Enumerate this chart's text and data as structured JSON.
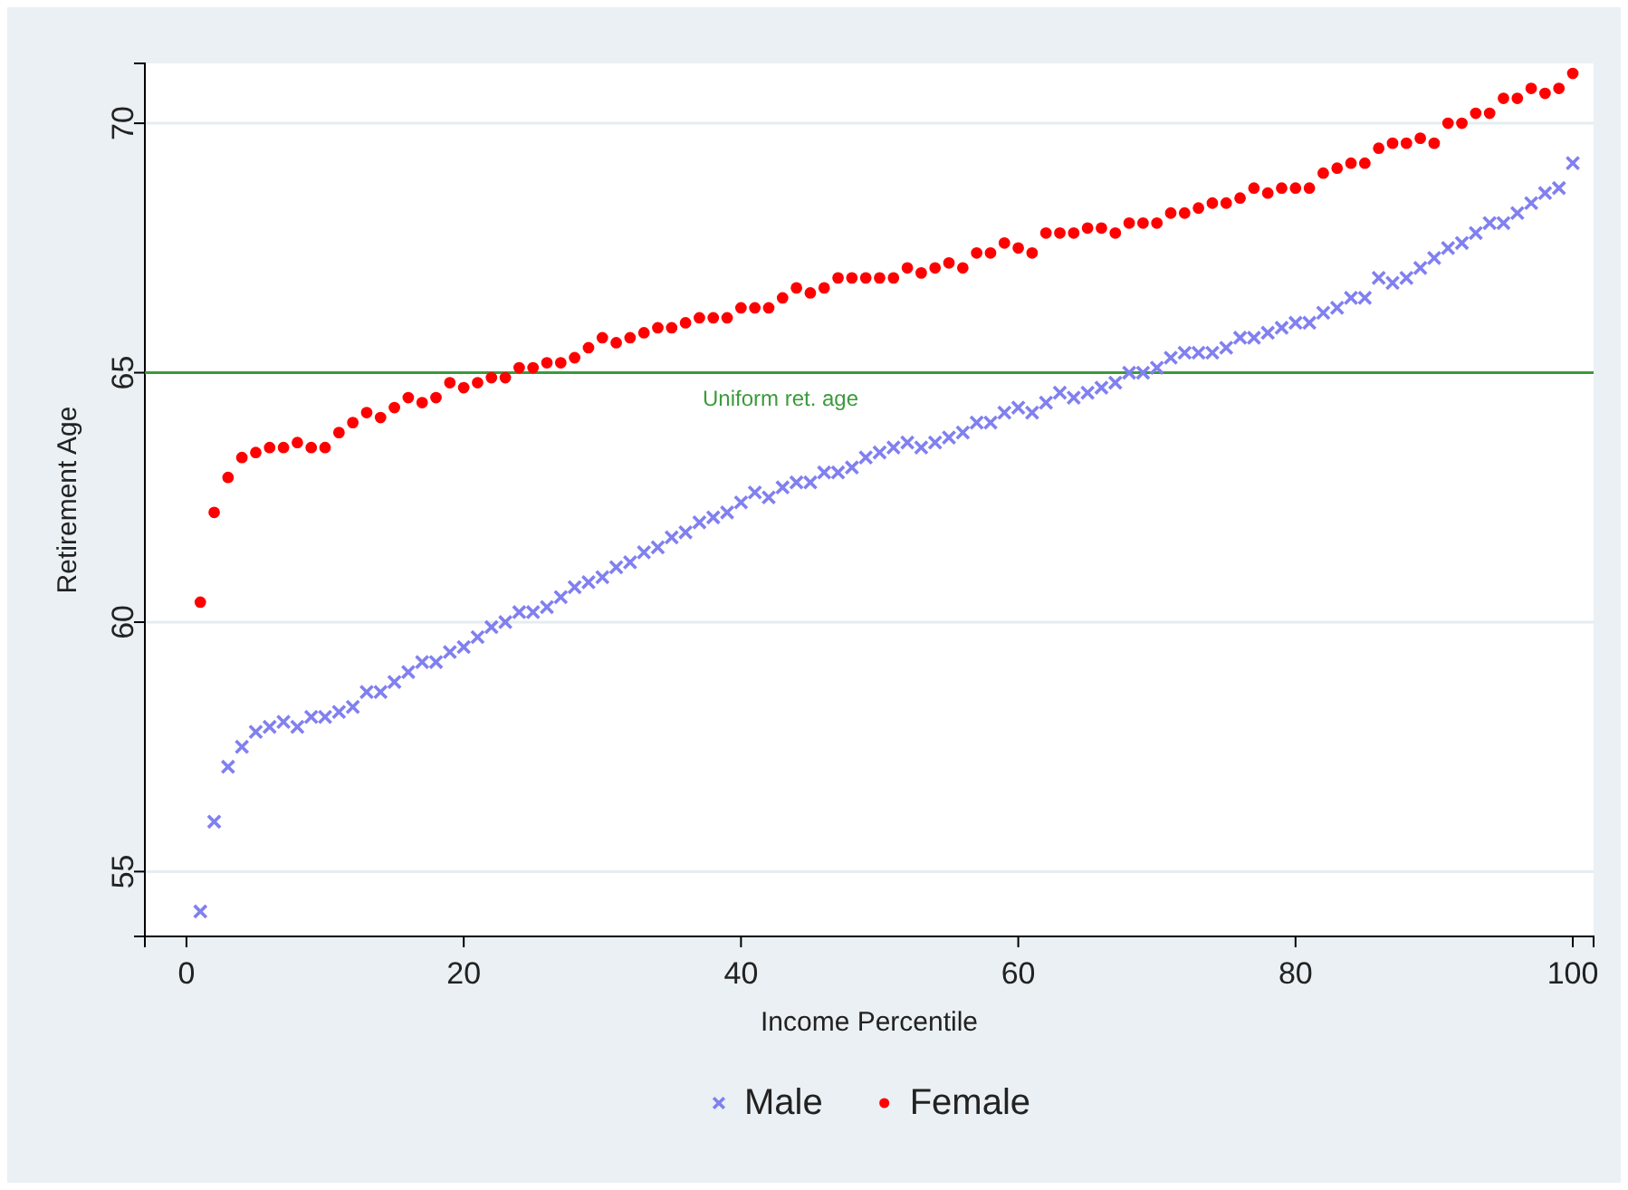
{
  "chart_data": {
    "type": "scatter",
    "xlabel": "Income Percentile",
    "ylabel": "Retirement Age",
    "x": [
      1,
      2,
      3,
      4,
      5,
      6,
      7,
      8,
      9,
      10,
      11,
      12,
      13,
      14,
      15,
      16,
      17,
      18,
      19,
      20,
      21,
      22,
      23,
      24,
      25,
      26,
      27,
      28,
      29,
      30,
      31,
      32,
      33,
      34,
      35,
      36,
      37,
      38,
      39,
      40,
      41,
      42,
      43,
      44,
      45,
      46,
      47,
      48,
      49,
      50,
      51,
      52,
      53,
      54,
      55,
      56,
      57,
      58,
      59,
      60,
      61,
      62,
      63,
      64,
      65,
      66,
      67,
      68,
      69,
      70,
      71,
      72,
      73,
      74,
      75,
      76,
      77,
      78,
      79,
      80,
      81,
      82,
      83,
      84,
      85,
      86,
      87,
      88,
      89,
      90,
      91,
      92,
      93,
      94,
      95,
      96,
      97,
      98,
      99,
      100
    ],
    "xlim": [
      -3,
      101.5
    ],
    "xticks": [
      0,
      20,
      40,
      60,
      80,
      100
    ],
    "ylim": [
      53.7,
      71.2
    ],
    "yticks": [
      55,
      60,
      65,
      70
    ],
    "grid": "y",
    "legend": "bottom",
    "ref_lines": [
      {
        "axis": "y",
        "value": 65,
        "label": "Uniform ret. age",
        "color": "#3c9a3c"
      }
    ],
    "series": [
      {
        "name": "Male",
        "color": "#8080f0",
        "marker": "cross",
        "values": [
          54.2,
          56.0,
          57.1,
          57.5,
          57.8,
          57.9,
          58.0,
          57.9,
          58.1,
          58.1,
          58.2,
          58.3,
          58.6,
          58.6,
          58.8,
          59.0,
          59.2,
          59.2,
          59.4,
          59.5,
          59.7,
          59.9,
          60.0,
          60.2,
          60.2,
          60.3,
          60.5,
          60.7,
          60.8,
          60.9,
          61.1,
          61.2,
          61.4,
          61.5,
          61.7,
          61.8,
          62.0,
          62.1,
          62.2,
          62.4,
          62.6,
          62.5,
          62.7,
          62.8,
          62.8,
          63.0,
          63.0,
          63.1,
          63.3,
          63.4,
          63.5,
          63.6,
          63.5,
          63.6,
          63.7,
          63.8,
          64.0,
          64.0,
          64.2,
          64.3,
          64.2,
          64.4,
          64.6,
          64.5,
          64.6,
          64.7,
          64.8,
          65.0,
          65.0,
          65.1,
          65.3,
          65.4,
          65.4,
          65.4,
          65.5,
          65.7,
          65.7,
          65.8,
          65.9,
          66.0,
          66.0,
          66.2,
          66.3,
          66.5,
          66.5,
          66.9,
          66.8,
          66.9,
          67.1,
          67.3,
          67.5,
          67.6,
          67.8,
          68.0,
          68.0,
          68.2,
          68.4,
          68.6,
          68.7,
          69.2
        ]
      },
      {
        "name": "Female",
        "color": "#ff0000",
        "marker": "circle",
        "values": [
          60.4,
          62.2,
          62.9,
          63.3,
          63.4,
          63.5,
          63.5,
          63.6,
          63.5,
          63.5,
          63.8,
          64.0,
          64.2,
          64.1,
          64.3,
          64.5,
          64.4,
          64.5,
          64.8,
          64.7,
          64.8,
          64.9,
          64.9,
          65.1,
          65.1,
          65.2,
          65.2,
          65.3,
          65.5,
          65.7,
          65.6,
          65.7,
          65.8,
          65.9,
          65.9,
          66.0,
          66.1,
          66.1,
          66.1,
          66.3,
          66.3,
          66.3,
          66.5,
          66.7,
          66.6,
          66.7,
          66.9,
          66.9,
          66.9,
          66.9,
          66.9,
          67.1,
          67.0,
          67.1,
          67.2,
          67.1,
          67.4,
          67.4,
          67.6,
          67.5,
          67.4,
          67.8,
          67.8,
          67.8,
          67.9,
          67.9,
          67.8,
          68.0,
          68.0,
          68.0,
          68.2,
          68.2,
          68.3,
          68.4,
          68.4,
          68.5,
          68.7,
          68.6,
          68.7,
          68.7,
          68.7,
          69.0,
          69.1,
          69.2,
          69.2,
          69.5,
          69.6,
          69.6,
          69.7,
          69.6,
          70.0,
          70.0,
          70.2,
          70.2,
          70.5,
          70.5,
          70.7,
          70.6,
          70.7,
          71.0
        ]
      }
    ]
  }
}
